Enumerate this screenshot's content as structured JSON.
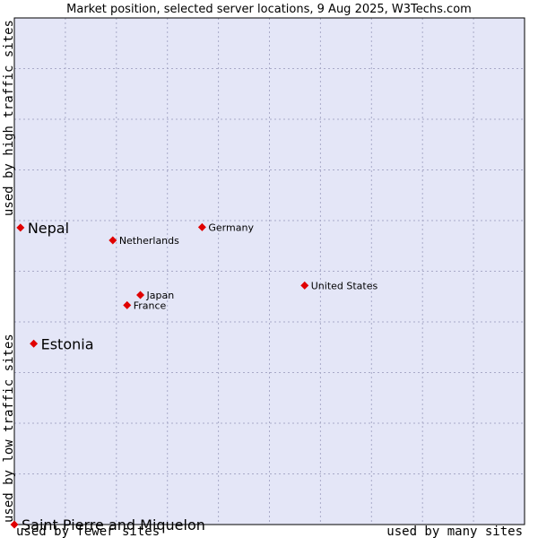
{
  "chart_data": {
    "type": "scatter",
    "title": "Market position, selected server locations, 9 Aug 2025, W3Techs.com",
    "xlabel_left": "used by fewer sites",
    "xlabel_right": "used by many sites",
    "ylabel_bottom": "used by low traffic sites",
    "ylabel_top": "used by high traffic sites",
    "xlim": [
      0,
      100
    ],
    "ylim": [
      0,
      100
    ],
    "grid": true,
    "colors": {
      "plot_bg": "#e4e6f7",
      "grid": "#a9aac8",
      "border": "#000000",
      "marker": "#e00000"
    },
    "points": [
      {
        "label": "Nepal",
        "x": 1.2,
        "y": 58.6,
        "size": "big"
      },
      {
        "label": "Netherlands",
        "x": 19.3,
        "y": 56.1,
        "size": "small"
      },
      {
        "label": "Germany",
        "x": 36.8,
        "y": 58.7,
        "size": "small"
      },
      {
        "label": "United States",
        "x": 56.9,
        "y": 47.2,
        "size": "small"
      },
      {
        "label": "Japan",
        "x": 24.7,
        "y": 45.3,
        "size": "small"
      },
      {
        "label": "France",
        "x": 22.1,
        "y": 43.3,
        "size": "small"
      },
      {
        "label": "Estonia",
        "x": 3.8,
        "y": 35.7,
        "size": "big"
      },
      {
        "label": "Saint Pierre and Miquelon",
        "x": 0,
        "y": 0,
        "size": "big"
      }
    ]
  }
}
